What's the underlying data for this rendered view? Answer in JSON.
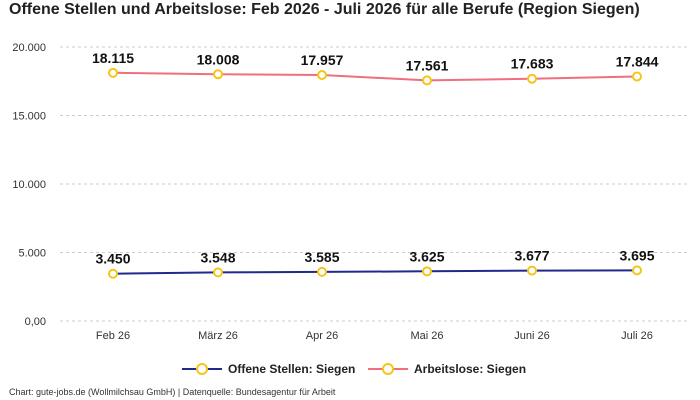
{
  "title": "Offene Stellen und Arbeitslose: Feb 2026 - Juli 2026 für alle Berufe (Region Siegen)",
  "footer": "Chart: gute-jobs.de (Wollmilchsau GmbH) | Datenquelle: Bundesagentur für Arbeit",
  "colors": {
    "offene": "#1f2a8a",
    "arbeitslose": "#ef6f7f",
    "marker": "#f5c518",
    "grid": "#cccccc"
  },
  "chart_data": {
    "type": "line",
    "categories": [
      "Feb 26",
      "März 26",
      "Apr 26",
      "Mai 26",
      "Juni 26",
      "Juli 26"
    ],
    "yticks": [
      "0,00",
      "5.000",
      "10.000",
      "15.000",
      "20.000"
    ],
    "ytick_values": [
      0,
      5000,
      10000,
      15000,
      20000
    ],
    "ylim": [
      0,
      20000
    ],
    "grid": true,
    "legend_position": "bottom",
    "series": [
      {
        "name": "Offene Stellen: Siegen",
        "values": [
          3450,
          3548,
          3585,
          3625,
          3677,
          3695
        ],
        "labels": [
          "3.450",
          "3.548",
          "3.585",
          "3.625",
          "3.677",
          "3.695"
        ]
      },
      {
        "name": "Arbeitslose: Siegen",
        "values": [
          18115,
          18008,
          17957,
          17561,
          17683,
          17844
        ],
        "labels": [
          "18.115",
          "18.008",
          "17.957",
          "17.561",
          "17.683",
          "17.844"
        ]
      }
    ]
  }
}
